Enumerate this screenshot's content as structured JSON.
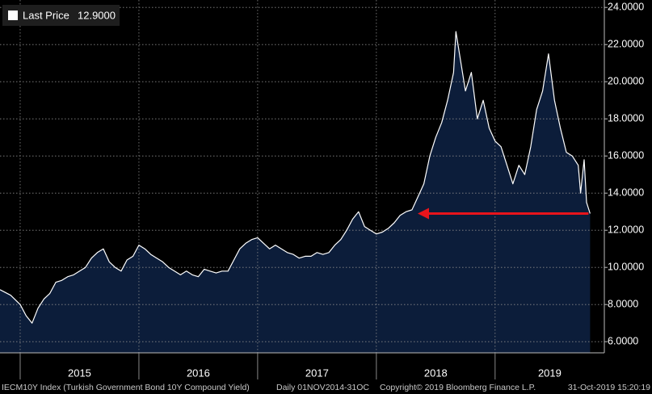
{
  "chart_data": {
    "type": "area",
    "legend": {
      "label": "Last Price",
      "value": 12.9,
      "value_label": "12.9000"
    },
    "footer": {
      "index": "IECM10Y Index (Turkish Government Bond 10Y Compound Yield)",
      "range": "Daily 01NOV2014-31OC",
      "copyright": "Copyright© 2019 Bloomberg Finance L.P.",
      "timestamp": "31-Oct-2019 15:20:19"
    },
    "line_color": "#ffffff",
    "fill_color": "#0c1d3a",
    "arrow_color": "#e8141b",
    "grid": true,
    "xlim": [
      2014.83,
      2019.92
    ],
    "ylim": [
      5.4,
      24.4
    ],
    "xticks": [
      2015,
      2016,
      2017,
      2018,
      2019
    ],
    "yticks": [
      {
        "value": 6,
        "label": "6.0000"
      },
      {
        "value": 8,
        "label": "8.0000"
      },
      {
        "value": 10,
        "label": "10.0000"
      },
      {
        "value": 12,
        "label": "12.0000"
      },
      {
        "value": 14,
        "label": "14.0000"
      },
      {
        "value": 16,
        "label": "16.0000"
      },
      {
        "value": 18,
        "label": "18.0000"
      },
      {
        "value": 20,
        "label": "20.0000"
      },
      {
        "value": 22,
        "label": "22.0000"
      },
      {
        "value": 24,
        "label": "24.0000"
      }
    ],
    "x": [
      2014.83,
      2014.92,
      2015.0,
      2015.05,
      2015.1,
      2015.15,
      2015.2,
      2015.25,
      2015.3,
      2015.35,
      2015.4,
      2015.45,
      2015.5,
      2015.55,
      2015.6,
      2015.65,
      2015.7,
      2015.75,
      2015.8,
      2015.85,
      2015.9,
      2015.95,
      2016.0,
      2016.05,
      2016.1,
      2016.15,
      2016.2,
      2016.25,
      2016.3,
      2016.35,
      2016.4,
      2016.45,
      2016.5,
      2016.55,
      2016.6,
      2016.65,
      2016.7,
      2016.75,
      2016.8,
      2016.85,
      2016.9,
      2016.95,
      2017.0,
      2017.05,
      2017.1,
      2017.15,
      2017.2,
      2017.25,
      2017.3,
      2017.35,
      2017.4,
      2017.45,
      2017.5,
      2017.55,
      2017.6,
      2017.65,
      2017.7,
      2017.75,
      2017.8,
      2017.85,
      2017.9,
      2017.95,
      2018.0,
      2018.05,
      2018.1,
      2018.15,
      2018.2,
      2018.25,
      2018.3,
      2018.35,
      2018.4,
      2018.45,
      2018.5,
      2018.55,
      2018.6,
      2018.65,
      2018.67,
      2018.7,
      2018.75,
      2018.8,
      2018.85,
      2018.9,
      2018.95,
      2019.0,
      2019.05,
      2019.1,
      2019.15,
      2019.2,
      2019.25,
      2019.3,
      2019.35,
      2019.4,
      2019.45,
      2019.5,
      2019.55,
      2019.6,
      2019.65,
      2019.7,
      2019.72,
      2019.75,
      2019.77,
      2019.8
    ],
    "values": [
      8.8,
      8.5,
      8.0,
      7.4,
      7.0,
      7.8,
      8.3,
      8.6,
      9.2,
      9.3,
      9.5,
      9.6,
      9.8,
      10.0,
      10.5,
      10.8,
      11.0,
      10.3,
      10.0,
      9.8,
      10.4,
      10.6,
      11.2,
      11.0,
      10.7,
      10.5,
      10.3,
      10.0,
      9.8,
      9.6,
      9.8,
      9.6,
      9.5,
      9.9,
      9.8,
      9.7,
      9.8,
      9.8,
      10.4,
      11.0,
      11.3,
      11.5,
      11.6,
      11.3,
      11.0,
      11.2,
      11.0,
      10.8,
      10.7,
      10.5,
      10.6,
      10.6,
      10.8,
      10.7,
      10.8,
      11.2,
      11.5,
      12.0,
      12.6,
      13.0,
      12.2,
      12.0,
      11.8,
      11.9,
      12.1,
      12.4,
      12.8,
      13.0,
      13.1,
      13.8,
      14.5,
      16.0,
      17.0,
      17.8,
      19.0,
      20.5,
      22.7,
      21.5,
      19.5,
      20.5,
      18.0,
      19.0,
      17.5,
      16.8,
      16.5,
      15.5,
      14.5,
      15.5,
      15.0,
      16.5,
      18.5,
      19.5,
      21.5,
      19.0,
      17.5,
      16.2,
      16.0,
      15.5,
      14.0,
      15.8,
      13.5,
      12.9
    ]
  }
}
